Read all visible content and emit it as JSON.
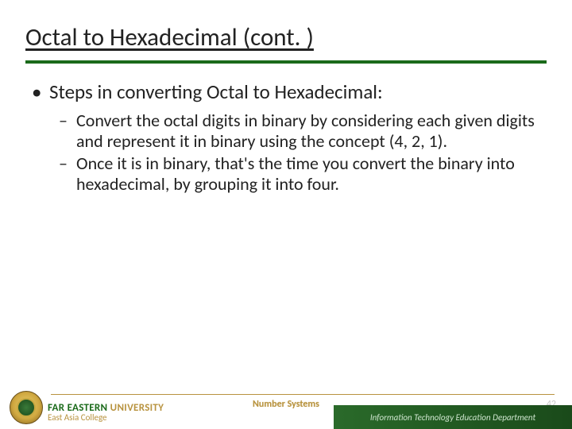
{
  "title": "Octal to Hexadecimal (cont. )",
  "rule_color": "#1a6a1a",
  "content": {
    "level1": "Steps in converting Octal to Hexadecimal:",
    "sub": [
      "Convert the octal digits in binary by considering each given digits and represent it in binary using the concept (4, 2, 1).",
      "Once it is in binary, that's the time you convert the binary into hexadecimal, by grouping it into four."
    ]
  },
  "footer": {
    "uni_green": "FAR EASTERN",
    "uni_gold": "UNIVERSITY",
    "uni_sub": "East Asia College",
    "center": "Number Systems",
    "dept": "Information Technology Education Department",
    "page": "42"
  }
}
